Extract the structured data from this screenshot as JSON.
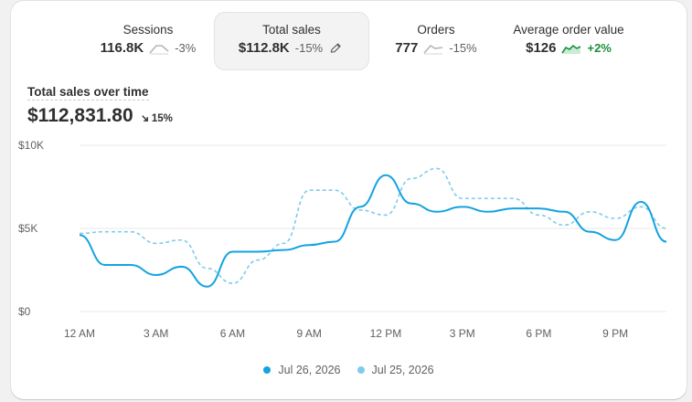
{
  "metrics": [
    {
      "label": "Sessions",
      "value": "116.8K",
      "change": "-3%",
      "trend": "flat-gray"
    },
    {
      "label": "Total sales",
      "value": "$112.8K",
      "change": "-15%",
      "trend": "edit"
    },
    {
      "label": "Orders",
      "value": "777",
      "change": "-15%",
      "trend": "flat-gray"
    },
    {
      "label": "Average order value",
      "value": "$126",
      "change": "+2%",
      "trend": "up-green"
    }
  ],
  "chart_header": {
    "title": "Total sales over time",
    "amount": "$112,831.80",
    "change": "15%",
    "change_icon": "arrow-down-right-icon"
  },
  "legend": [
    {
      "label": "Jul 26, 2026",
      "color": "#13a3e0"
    },
    {
      "label": "Jul 25, 2026",
      "color": "#7fcbec"
    }
  ],
  "chart_data": {
    "type": "line",
    "title": "Total sales over time",
    "ylim": [
      0,
      10000
    ],
    "y_ticks": [
      "$0",
      "$5K",
      "$10K"
    ],
    "y_tick_values": [
      0,
      5000,
      10000
    ],
    "x_ticks": [
      "12 AM",
      "3 AM",
      "6 AM",
      "9 AM",
      "12 PM",
      "3 PM",
      "6 PM",
      "9 PM"
    ],
    "x_tick_values": [
      0,
      3,
      6,
      9,
      12,
      15,
      18,
      21
    ],
    "xlim": [
      0,
      23
    ],
    "grid": true,
    "legend_position": "bottom-center",
    "series": [
      {
        "name": "Jul 26, 2026",
        "color": "#13a3e0",
        "style": "solid",
        "x": [
          0,
          1,
          2,
          3,
          4,
          5,
          6,
          7,
          8,
          9,
          10,
          11,
          12,
          13,
          14,
          15,
          16,
          17,
          18,
          19,
          20,
          21,
          22,
          23
        ],
        "values": [
          4600,
          2800,
          2800,
          2200,
          2700,
          1500,
          3600,
          3600,
          3700,
          4000,
          4200,
          6300,
          8200,
          6500,
          6000,
          6300,
          6000,
          6200,
          6200,
          6000,
          4800,
          4300,
          6600,
          4200
        ]
      },
      {
        "name": "Jul 25, 2026",
        "color": "#7fcbec",
        "style": "dashed",
        "x": [
          0,
          1,
          2,
          3,
          4,
          5,
          6,
          7,
          8,
          9,
          10,
          11,
          12,
          13,
          14,
          15,
          16,
          17,
          18,
          19,
          20,
          21,
          22,
          23
        ],
        "values": [
          4700,
          4800,
          4800,
          4100,
          4300,
          2600,
          1700,
          3100,
          4100,
          7300,
          7300,
          6100,
          5800,
          8000,
          8600,
          6800,
          6800,
          6800,
          5800,
          5200,
          6000,
          5600,
          6300,
          5000
        ]
      }
    ]
  }
}
